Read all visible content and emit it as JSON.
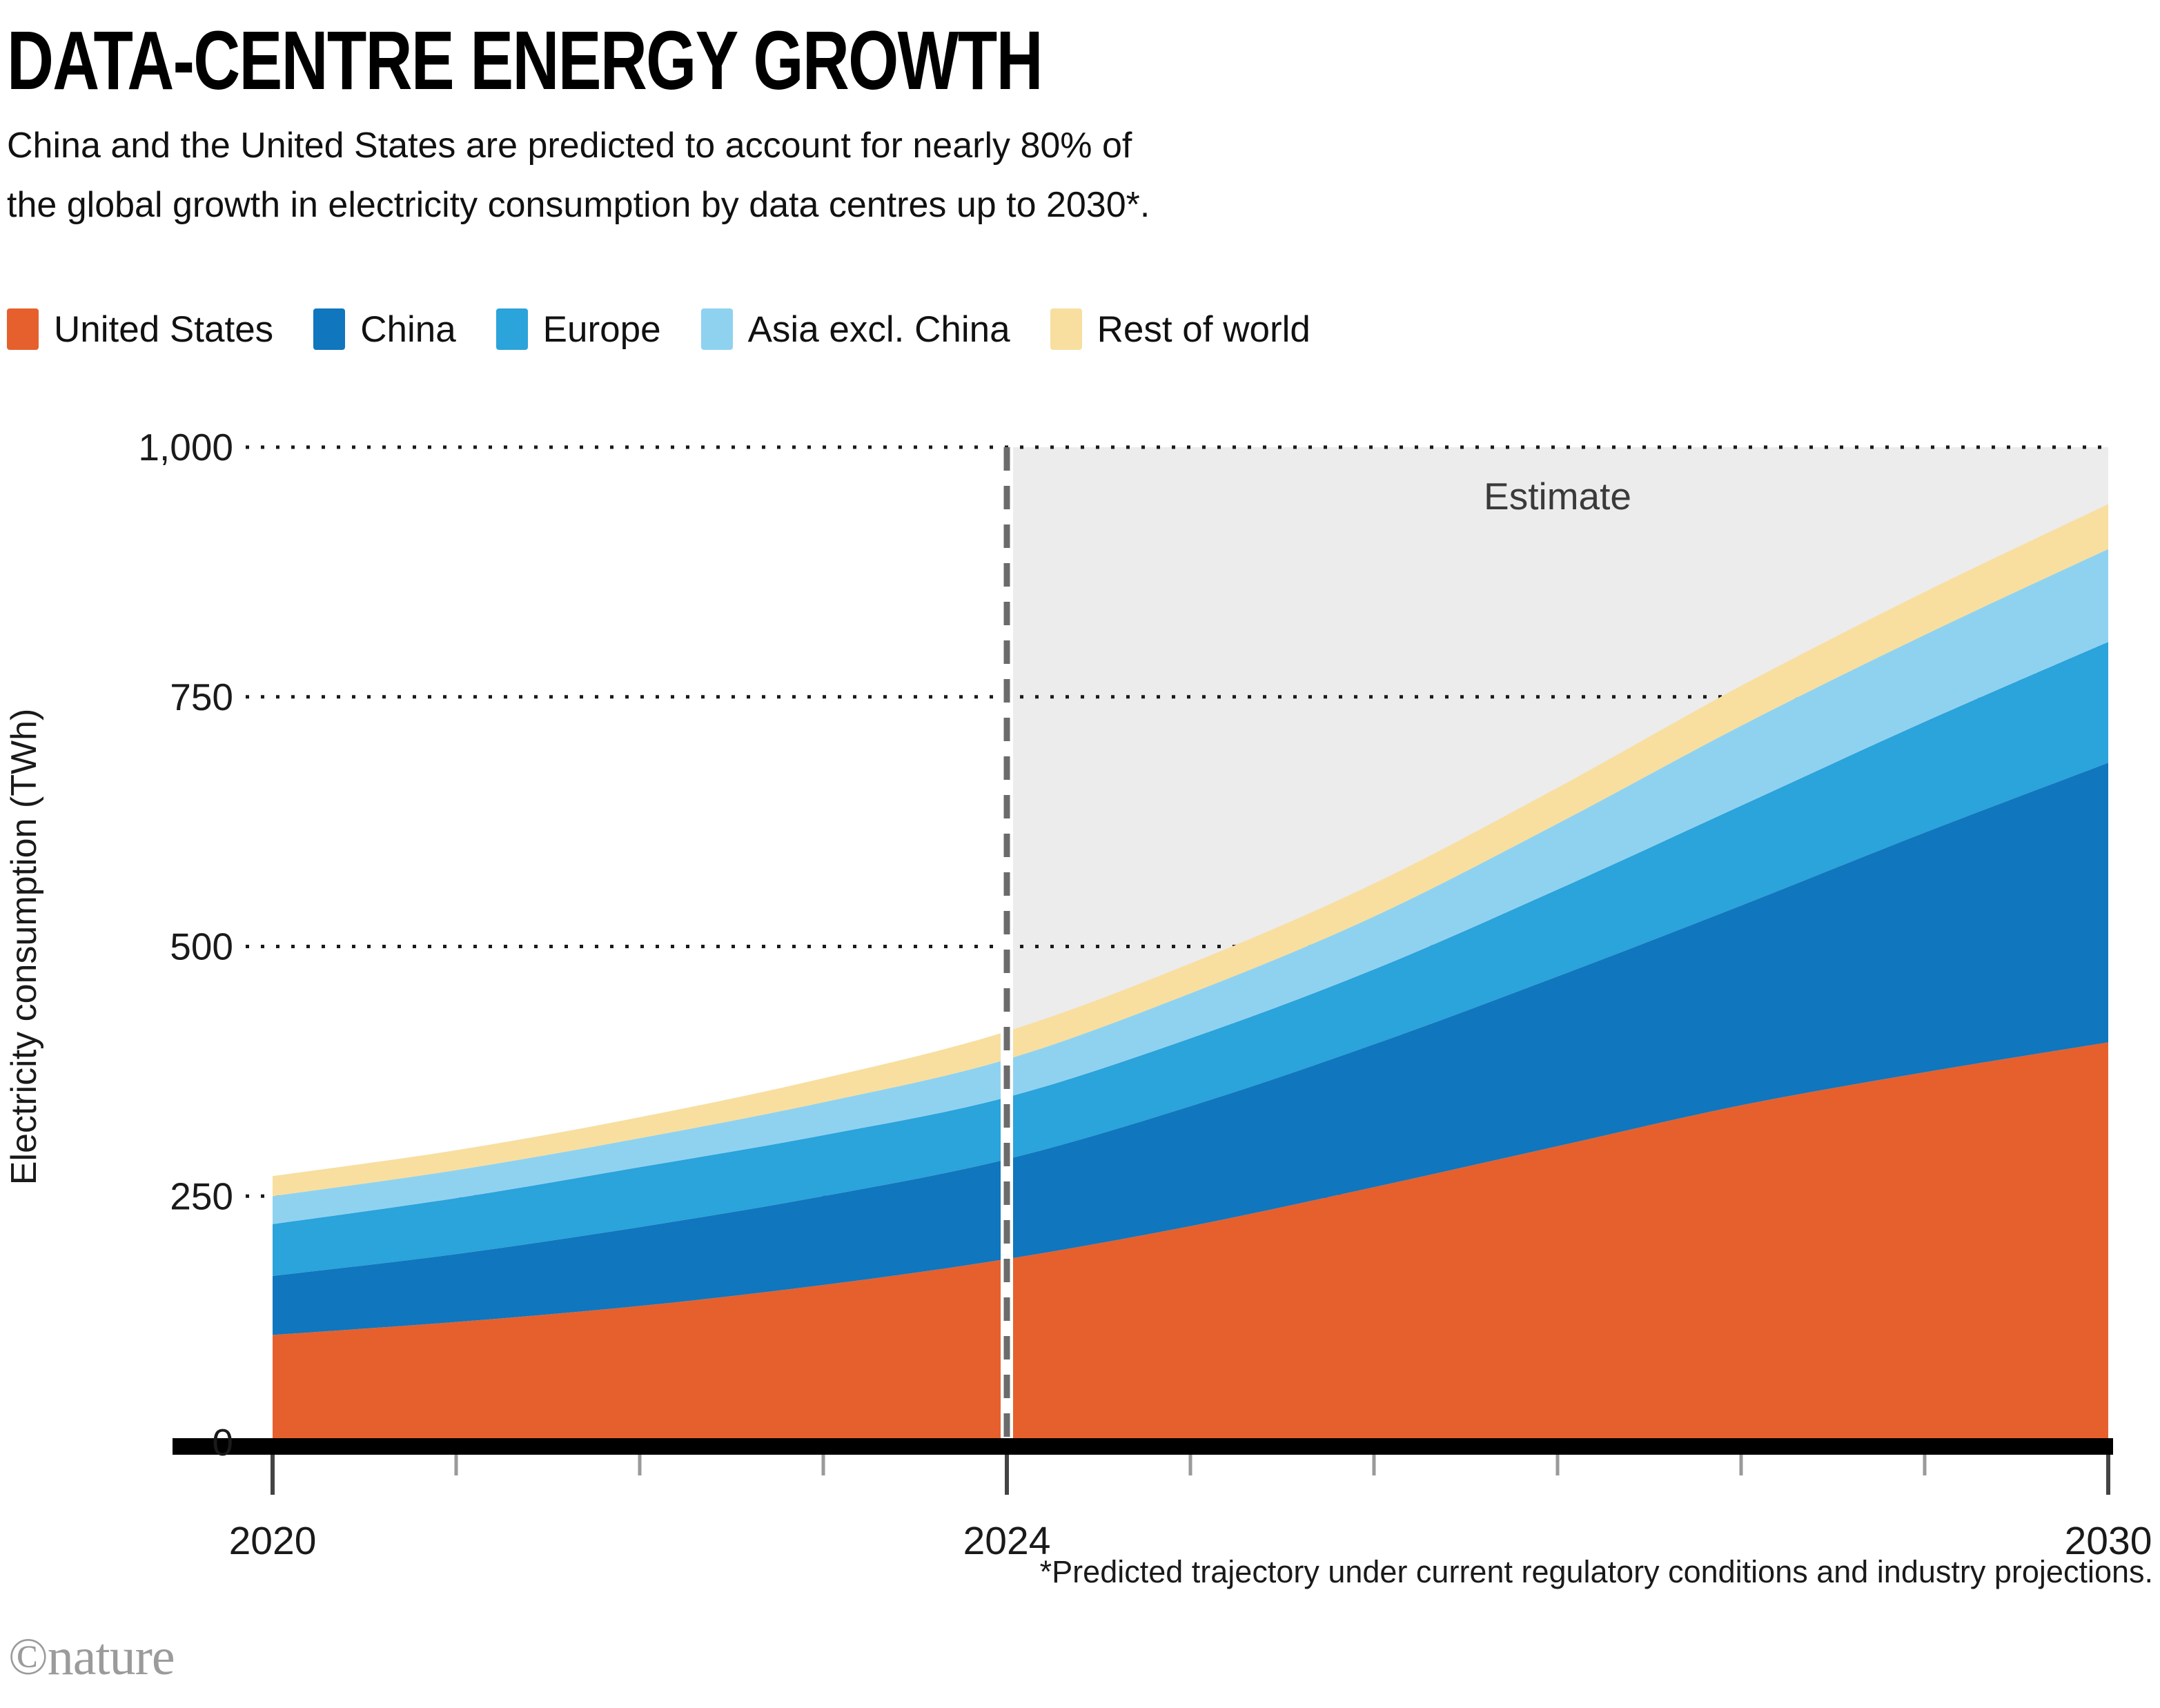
{
  "header": {
    "title": "DATA-CENTRE ENERGY GROWTH",
    "subtitle_line1": "China and the United States are predicted to account for nearly 80% of",
    "subtitle_line2": "the global growth in electricity consumption by data centres up to 2030*."
  },
  "estimate_label": "Estimate",
  "footnote": "*Predicted trajectory under current regulatory conditions and industry projections.",
  "logo": "©nature",
  "colors": {
    "estimate_bg": "#ECECEC",
    "axis_bar": "#000000",
    "gridline": "#1a1a1a",
    "dashed_line": "#6b6b6b",
    "dashed_line_underlay": "#ffffff",
    "tick_major": "#444444",
    "tick_minor": "#9a9a9a",
    "axis_text": "#1a1a1a",
    "estimate_text": "#3a3a3a"
  },
  "chart_data": {
    "type": "area",
    "stacked": true,
    "title": "DATA-CENTRE ENERGY GROWTH",
    "xlabel": "",
    "ylabel": "Electricity consumption (TWh)",
    "ylim": [
      0,
      1000
    ],
    "x": [
      2020,
      2021,
      2022,
      2023,
      2024,
      2025,
      2026,
      2027,
      2028,
      2029,
      2030
    ],
    "series": [
      {
        "name": "United States",
        "color": "#E6602D",
        "values": [
          111,
          124,
          140,
          161,
          187,
          220,
          259,
          300,
          341,
          374,
          404
        ]
      },
      {
        "name": "China",
        "color": "#1076BD",
        "values": [
          59,
          68,
          79,
          89,
          100,
          120,
          143,
          170,
          200,
          240,
          280
        ]
      },
      {
        "name": "Europe",
        "color": "#2BA3DB",
        "values": [
          52,
          56,
          60,
          61,
          62,
          68,
          75,
          87,
          100,
          111,
          121
        ]
      },
      {
        "name": "Asia excl. China",
        "color": "#8FD2F0",
        "values": [
          28,
          28,
          29,
          33,
          38,
          45,
          53,
          66,
          80,
          87,
          93
        ]
      },
      {
        "name": "Rest of world",
        "color": "#F8DFA0",
        "values": [
          20,
          20,
          21,
          24,
          28,
          30,
          33,
          36,
          40,
          43,
          45
        ]
      }
    ],
    "totals_by_year": [
      270,
      296,
      329,
      368,
      415,
      483,
      563,
      659,
      761,
      855,
      943
    ],
    "yticks": [
      {
        "value": 0,
        "label": "0"
      },
      {
        "value": 250,
        "label": "250"
      },
      {
        "value": 500,
        "label": "500"
      },
      {
        "value": 750,
        "label": "750"
      },
      {
        "value": 1000,
        "label": "1,000"
      }
    ],
    "xticks_labeled": [
      2020,
      2024,
      2030
    ],
    "estimate_region_start_x": 2024,
    "grid": "dotted horizontal, on",
    "legend_position": "top-left above plot"
  }
}
